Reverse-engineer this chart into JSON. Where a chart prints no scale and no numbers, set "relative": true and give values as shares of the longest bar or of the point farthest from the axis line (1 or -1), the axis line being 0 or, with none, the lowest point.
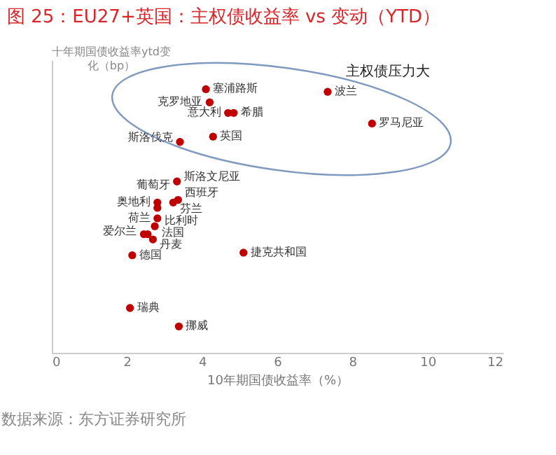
{
  "chart_data": {
    "type": "scatter",
    "title": "图 25：EU27+英国：主权债收益率 vs 变动（YTD）",
    "xlabel": "10年期国债收益率（%）",
    "ylabel": "十年期国债收益率ytd变化（bp）",
    "relative": true,
    "xlim": [
      0,
      12
    ],
    "xticks": [
      0,
      2,
      4,
      6,
      8,
      10,
      12
    ],
    "marker": "circle",
    "color": "#c00000",
    "x": [
      4.1,
      4.2,
      4.69,
      4.84,
      4.29,
      3.41,
      7.34,
      8.52,
      3.33,
      3.23,
      3.36,
      2.81,
      2.81,
      2.81,
      2.74,
      2.45,
      2.55,
      2.69,
      2.14,
      5.1,
      2.08,
      3.38
    ],
    "values": [
      1.0,
      0.95,
      0.91,
      0.91,
      0.82,
      0.8,
      0.99,
      0.87,
      0.65,
      0.57,
      0.58,
      0.57,
      0.55,
      0.51,
      0.48,
      0.45,
      0.45,
      0.43,
      0.37,
      0.38,
      0.17,
      0.1
    ],
    "annotations": [
      {
        "text": "塞浦路斯",
        "x": 4.1,
        "y": 1.0
      },
      {
        "text": "克罗地亚",
        "x": 4.2,
        "y": 0.95
      },
      {
        "text": "意大利",
        "x": 4.69,
        "y": 0.91
      },
      {
        "text": "希腊",
        "x": 4.84,
        "y": 0.91
      },
      {
        "text": "英国",
        "x": 4.29,
        "y": 0.82
      },
      {
        "text": "斯洛伐克",
        "x": 3.41,
        "y": 0.8
      },
      {
        "text": "波兰",
        "x": 7.34,
        "y": 0.99
      },
      {
        "text": "罗马尼亚",
        "x": 8.52,
        "y": 0.87
      },
      {
        "text": "斯洛文尼亚",
        "x": 3.33,
        "y": 0.65
      },
      {
        "text": "葡萄牙",
        "x": 3.33,
        "y": 0.65
      },
      {
        "text": "西班牙",
        "x": 3.36,
        "y": 0.58
      },
      {
        "text": "芬兰",
        "x": 3.23,
        "y": 0.57
      },
      {
        "text": "奥地利",
        "x": 2.81,
        "y": 0.57
      },
      {
        "text": "荷兰",
        "x": 2.81,
        "y": 0.51
      },
      {
        "text": "比利时",
        "x": 2.81,
        "y": 0.51
      },
      {
        "text": "法国",
        "x": 2.74,
        "y": 0.48
      },
      {
        "text": "爱尔兰",
        "x": 2.45,
        "y": 0.45
      },
      {
        "text": "丹麦",
        "x": 2.69,
        "y": 0.43
      },
      {
        "text": "德国",
        "x": 2.14,
        "y": 0.37
      },
      {
        "text": "捷克共和国",
        "x": 5.1,
        "y": 0.38
      },
      {
        "text": "瑞典",
        "x": 2.08,
        "y": 0.17
      },
      {
        "text": "挪威",
        "x": 3.38,
        "y": 0.1
      },
      "主权债压力大",
      "数据来源：东方证券研究所"
    ]
  }
}
